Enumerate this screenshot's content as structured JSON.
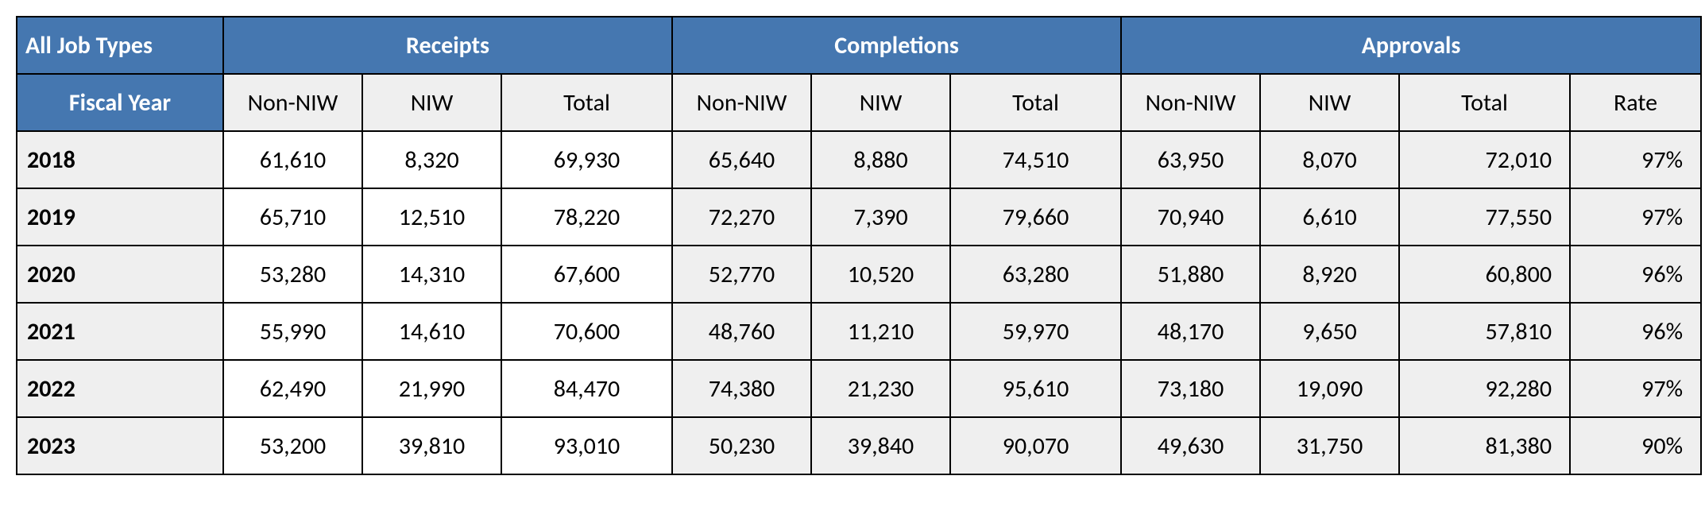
{
  "colors": {
    "header_bg": "#4577b0",
    "header_fg": "#ffffff",
    "subheader_bg": "#efefef",
    "data_bg_white": "#ffffff",
    "data_bg_grey": "#efefef",
    "border": "#000000",
    "text": "#000000"
  },
  "typography": {
    "header_fontsize_pt": 22,
    "cell_fontsize_pt": 22,
    "header_weight": 700,
    "year_weight": 700,
    "font_family": "Calibri"
  },
  "table": {
    "type": "table",
    "corner_label": "All Job Types",
    "fiscal_year_label": "Fiscal Year",
    "groups": [
      {
        "label": "Receipts",
        "sub": [
          "Non-NIW",
          "NIW",
          "Total"
        ]
      },
      {
        "label": "Completions",
        "sub": [
          "Non-NIW",
          "NIW",
          "Total"
        ]
      },
      {
        "label": "Approvals",
        "sub": [
          "Non-NIW",
          "NIW",
          "Total",
          "Rate"
        ]
      }
    ],
    "rows": [
      {
        "year": "2018",
        "receipts": {
          "non_niw": "61,610",
          "niw": "8,320",
          "total": "69,930"
        },
        "completions": {
          "non_niw": "65,640",
          "niw": "8,880",
          "total": "74,510"
        },
        "approvals": {
          "non_niw": "63,950",
          "niw": "8,070",
          "total": "72,010",
          "rate": "97%"
        }
      },
      {
        "year": "2019",
        "receipts": {
          "non_niw": "65,710",
          "niw": "12,510",
          "total": "78,220"
        },
        "completions": {
          "non_niw": "72,270",
          "niw": "7,390",
          "total": "79,660"
        },
        "approvals": {
          "non_niw": "70,940",
          "niw": "6,610",
          "total": "77,550",
          "rate": "97%"
        }
      },
      {
        "year": "2020",
        "receipts": {
          "non_niw": "53,280",
          "niw": "14,310",
          "total": "67,600"
        },
        "completions": {
          "non_niw": "52,770",
          "niw": "10,520",
          "total": "63,280"
        },
        "approvals": {
          "non_niw": "51,880",
          "niw": "8,920",
          "total": "60,800",
          "rate": "96%"
        }
      },
      {
        "year": "2021",
        "receipts": {
          "non_niw": "55,990",
          "niw": "14,610",
          "total": "70,600"
        },
        "completions": {
          "non_niw": "48,760",
          "niw": "11,210",
          "total": "59,970"
        },
        "approvals": {
          "non_niw": "48,170",
          "niw": "9,650",
          "total": "57,810",
          "rate": "96%"
        }
      },
      {
        "year": "2022",
        "receipts": {
          "non_niw": "62,490",
          "niw": "21,990",
          "total": "84,470"
        },
        "completions": {
          "non_niw": "74,380",
          "niw": "21,230",
          "total": "95,610"
        },
        "approvals": {
          "non_niw": "73,180",
          "niw": "19,090",
          "total": "92,280",
          "rate": "97%"
        }
      },
      {
        "year": "2023",
        "receipts": {
          "non_niw": "53,200",
          "niw": "39,810",
          "total": "93,010"
        },
        "completions": {
          "non_niw": "50,230",
          "niw": "39,840",
          "total": "90,070"
        },
        "approvals": {
          "non_niw": "49,630",
          "niw": "31,750",
          "total": "81,380",
          "rate": "90%"
        }
      }
    ]
  }
}
